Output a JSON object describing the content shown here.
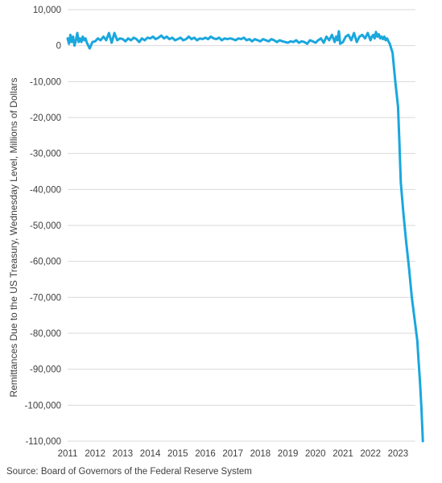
{
  "chart_data": {
    "type": "line",
    "title": "",
    "xlabel": "",
    "ylabel": "Remittances Due to the US Treasury, Wednesday Level, Millions of Dollars",
    "source": "Source: Board of Governors of the Federal Reserve System",
    "ylim": [
      -110000,
      10000
    ],
    "xlim": [
      2011,
      2023.9
    ],
    "y_ticks": [
      10000,
      0,
      -10000,
      -20000,
      -30000,
      -40000,
      -50000,
      -60000,
      -70000,
      -80000,
      -90000,
      -100000,
      -110000
    ],
    "y_tick_labels": [
      "10,000",
      "0",
      "-10,000",
      "-20,000",
      "-30,000",
      "-40,000",
      "-50,000",
      "-60,000",
      "-70,000",
      "-80,000",
      "-90,000",
      "-100,000",
      "-110,000"
    ],
    "x_ticks": [
      2011,
      2012,
      2013,
      2014,
      2015,
      2016,
      2017,
      2018,
      2019,
      2020,
      2021,
      2022,
      2023
    ],
    "x_tick_labels": [
      "2011",
      "2012",
      "2013",
      "2014",
      "2015",
      "2016",
      "2017",
      "2018",
      "2019",
      "2020",
      "2021",
      "2022",
      "2023"
    ],
    "grid": true,
    "legend": "none",
    "series": [
      {
        "color": "#1aa7dd",
        "x": [
          2011.0,
          2011.05,
          2011.1,
          2011.15,
          2011.2,
          2011.25,
          2011.3,
          2011.35,
          2011.4,
          2011.45,
          2011.5,
          2011.55,
          2011.6,
          2011.65,
          2011.7,
          2011.8,
          2011.9,
          2012.0,
          2012.1,
          2012.2,
          2012.3,
          2012.4,
          2012.5,
          2012.6,
          2012.7,
          2012.8,
          2012.9,
          2013.0,
          2013.1,
          2013.2,
          2013.3,
          2013.4,
          2013.5,
          2013.6,
          2013.7,
          2013.8,
          2013.9,
          2014.0,
          2014.1,
          2014.2,
          2014.3,
          2014.4,
          2014.5,
          2014.6,
          2014.7,
          2014.8,
          2014.9,
          2015.0,
          2015.1,
          2015.2,
          2015.3,
          2015.4,
          2015.5,
          2015.6,
          2015.7,
          2015.8,
          2015.9,
          2016.0,
          2016.1,
          2016.2,
          2016.3,
          2016.4,
          2016.5,
          2016.6,
          2016.7,
          2016.8,
          2016.9,
          2017.0,
          2017.1,
          2017.2,
          2017.3,
          2017.4,
          2017.5,
          2017.6,
          2017.7,
          2017.8,
          2017.9,
          2018.0,
          2018.1,
          2018.2,
          2018.3,
          2018.4,
          2018.5,
          2018.6,
          2018.7,
          2018.8,
          2018.9,
          2019.0,
          2019.1,
          2019.2,
          2019.3,
          2019.4,
          2019.5,
          2019.6,
          2019.7,
          2019.8,
          2019.9,
          2020.0,
          2020.1,
          2020.2,
          2020.3,
          2020.4,
          2020.5,
          2020.6,
          2020.7,
          2020.75,
          2020.8,
          2020.85,
          2020.9,
          2021.0,
          2021.1,
          2021.2,
          2021.3,
          2021.4,
          2021.5,
          2021.6,
          2021.7,
          2021.8,
          2021.9,
          2022.0,
          2022.05,
          2022.1,
          2022.15,
          2022.2,
          2022.25,
          2022.3,
          2022.35,
          2022.4,
          2022.45,
          2022.5,
          2022.55,
          2022.6,
          2022.65,
          2022.7,
          2022.8,
          2022.9,
          2023.0,
          2023.05,
          2023.1,
          2023.2,
          2023.3,
          2023.4,
          2023.5,
          2023.6,
          2023.7,
          2023.75,
          2023.8,
          2023.85,
          2023.9
        ],
        "values": [
          2000,
          500,
          3000,
          1000,
          2500,
          0,
          1500,
          3500,
          1000,
          2000,
          1000,
          2500,
          1500,
          2000,
          800,
          -800,
          1000,
          1200,
          2000,
          1500,
          2500,
          1500,
          3500,
          800,
          3500,
          1500,
          2000,
          1800,
          1200,
          2000,
          1500,
          2200,
          1800,
          1000,
          2000,
          1500,
          2200,
          2000,
          2500,
          1800,
          2200,
          2800,
          2000,
          2500,
          1800,
          2200,
          1500,
          1800,
          2200,
          1500,
          1800,
          2500,
          1800,
          2200,
          1500,
          2000,
          1800,
          2200,
          1800,
          2500,
          2000,
          1800,
          2200,
          1500,
          2000,
          1800,
          2000,
          1800,
          1500,
          2000,
          1800,
          2200,
          1500,
          1800,
          1200,
          1800,
          1500,
          1200,
          1800,
          1500,
          1200,
          1800,
          1500,
          1000,
          1500,
          1200,
          1000,
          800,
          1200,
          1000,
          1500,
          800,
          1200,
          1000,
          500,
          1500,
          1200,
          800,
          1500,
          2000,
          800,
          2500,
          1500,
          3000,
          1000,
          2500,
          1500,
          4000,
          500,
          1000,
          2500,
          3000,
          1500,
          3500,
          1000,
          2500,
          3000,
          2000,
          3500,
          1500,
          2500,
          3000,
          2000,
          3800,
          2500,
          3200,
          2000,
          2500,
          1800,
          2500,
          1500,
          2000,
          1200,
          500,
          -2000,
          -10000,
          -17000,
          -27000,
          -38000,
          -47000,
          -55000,
          -62000,
          -70000,
          -76000,
          -82000,
          -88000,
          -94000,
          -101000,
          -110000
        ]
      }
    ]
  }
}
